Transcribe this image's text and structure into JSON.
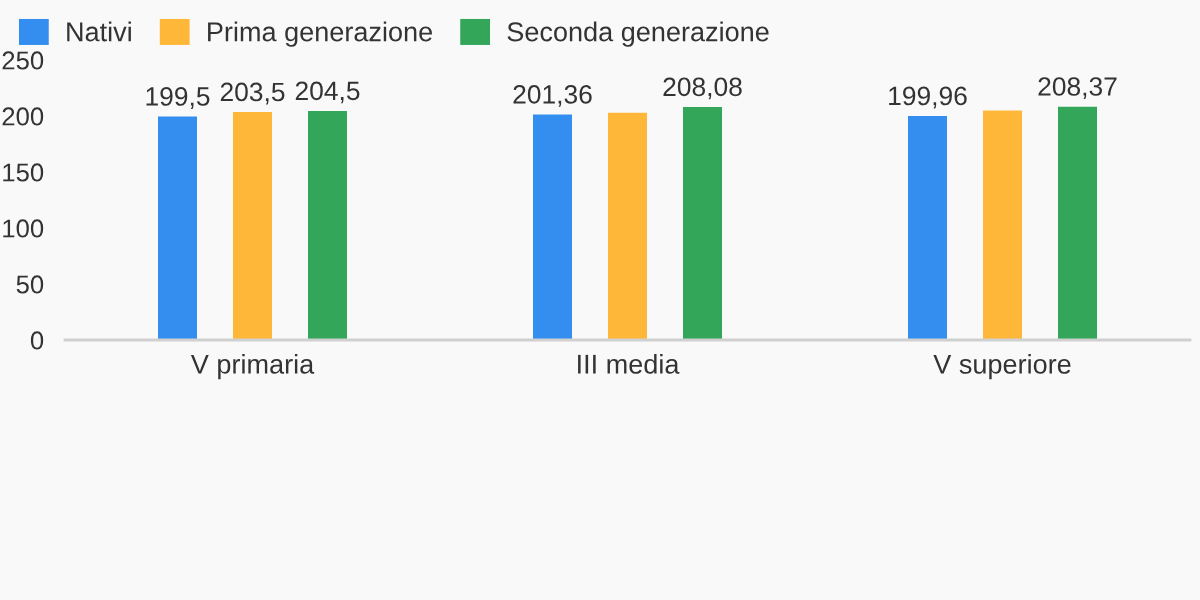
{
  "chart_data": {
    "type": "bar",
    "categories": [
      "V primaria",
      "III media",
      "V superiore"
    ],
    "series": [
      {
        "name": "Nativi",
        "color": "#338eef",
        "values": [
          199.5,
          201.36,
          199.96
        ],
        "value_labels": [
          "199,5",
          "201,36",
          "199,96"
        ]
      },
      {
        "name": "Prima generazione",
        "color": "#ffb73a",
        "values": [
          203.5,
          203,
          205
        ],
        "value_labels": [
          "203,5",
          null,
          null
        ]
      },
      {
        "name": "Seconda generazione",
        "color": "#33a65a",
        "values": [
          204.5,
          208.08,
          208.37
        ],
        "value_labels": [
          "204,5",
          "208,08",
          "208,37"
        ]
      }
    ],
    "ylim": [
      0,
      250
    ],
    "yticks": [
      0,
      50,
      100,
      150,
      200,
      250
    ],
    "grid": false,
    "legend": "top left"
  }
}
